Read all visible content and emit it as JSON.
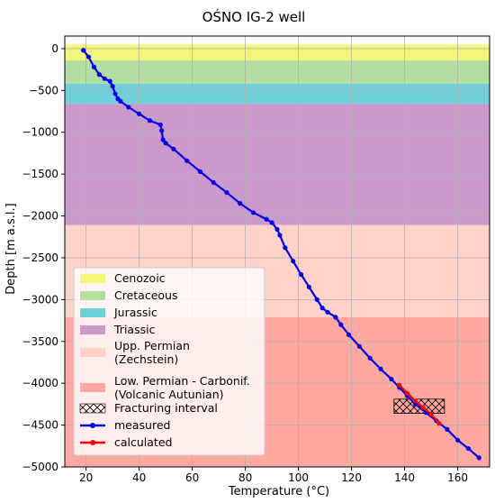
{
  "chart_data": {
    "type": "line",
    "title": "OŚNO IG-2 well",
    "xlabel": "Temperature (°C)",
    "ylabel": "Depth [m a.s.l.]",
    "xlim": [
      12,
      172
    ],
    "ylim": [
      -5000,
      150
    ],
    "xticks": [
      20,
      40,
      60,
      80,
      100,
      120,
      140,
      160
    ],
    "yticks": [
      0,
      -500,
      -1000,
      -1500,
      -2000,
      -2500,
      -3000,
      -3500,
      -4000,
      -4500,
      -5000
    ],
    "xtick_labels": [
      "20",
      "40",
      "60",
      "80",
      "100",
      "120",
      "140",
      "160"
    ],
    "ytick_labels": [
      "0",
      "−500",
      "−1000",
      "−1500",
      "−2000",
      "−2500",
      "−3000",
      "−3500",
      "−4000",
      "−4500",
      "−5000"
    ],
    "grid": true,
    "legend_position": "lower-left",
    "strata": [
      {
        "name": "Cenozoic",
        "top": 50,
        "bottom": -140,
        "color": "#f5f57a"
      },
      {
        "name": "Cretaceous",
        "top": -140,
        "bottom": -420,
        "color": "#b2dfa0"
      },
      {
        "name": "Jurassic",
        "top": -420,
        "bottom": -660,
        "color": "#6fd0dc"
      },
      {
        "name": "Triassic",
        "top": -660,
        "bottom": -2110,
        "color": "#cc99cc"
      },
      {
        "name": "Upp. Permian\n(Zechstein)",
        "top": -2110,
        "bottom": -3210,
        "color": "#ffd2c8"
      },
      {
        "name": "Low. Permian - Carbonif.\n(Volcanic Autunian)",
        "top": -3210,
        "bottom": -5050,
        "color": "#ffa8a0"
      }
    ],
    "fracturing_interval": {
      "name": "Fracturing interval",
      "x": [
        136,
        155
      ],
      "y": [
        -4190,
        -4360
      ]
    },
    "series": [
      {
        "name": "measured",
        "color": "#0000ee",
        "x": [
          19,
          21,
          23,
          25,
          27,
          29,
          30,
          31,
          32,
          33,
          36,
          40,
          44,
          48,
          48.5,
          49,
          50,
          53,
          58,
          63,
          68,
          73,
          78,
          83,
          88,
          90,
          92,
          93,
          95,
          98,
          101,
          104,
          107,
          109,
          111,
          114,
          116,
          119,
          123,
          127,
          131,
          135,
          138,
          141,
          144,
          148,
          152,
          156,
          160,
          164,
          168
        ],
        "y": [
          -20,
          -100,
          -220,
          -310,
          -360,
          -390,
          -450,
          -540,
          -600,
          -630,
          -700,
          -780,
          -860,
          -910,
          -980,
          -1090,
          -1130,
          -1200,
          -1340,
          -1470,
          -1600,
          -1720,
          -1850,
          -1960,
          -2040,
          -2080,
          -2160,
          -2230,
          -2380,
          -2540,
          -2700,
          -2850,
          -3000,
          -3100,
          -3150,
          -3210,
          -3300,
          -3420,
          -3560,
          -3700,
          -3830,
          -3950,
          -4050,
          -4150,
          -4250,
          -4350,
          -4450,
          -4550,
          -4680,
          -4780,
          -4890
        ]
      },
      {
        "name": "calculated",
        "color": "#ff0000",
        "x": [
          138,
          141,
          144,
          147,
          150,
          153
        ],
        "y": [
          -4020,
          -4120,
          -4210,
          -4290,
          -4370,
          -4480
        ]
      }
    ]
  }
}
